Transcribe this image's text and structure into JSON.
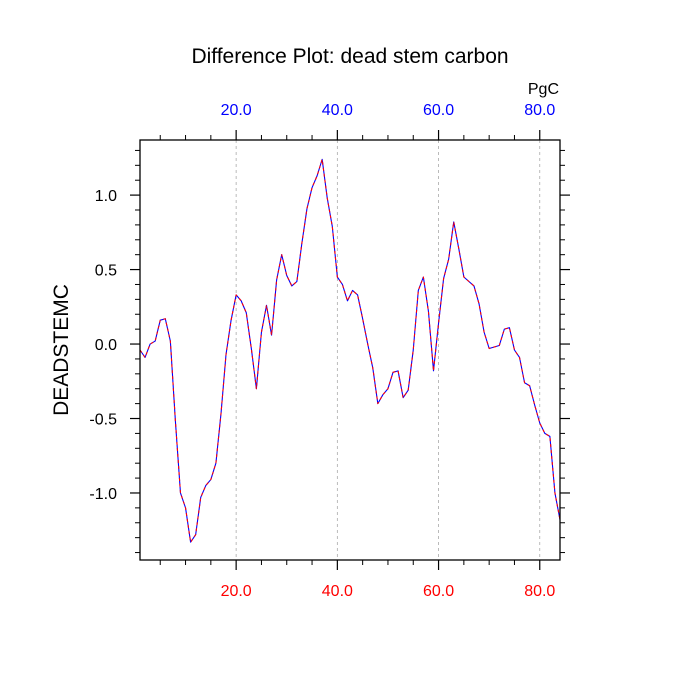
{
  "chart_data": {
    "type": "line",
    "title": "Difference Plot: dead stem carbon",
    "ylabel": "DEADSTEMC",
    "top_axis_unit": "PgC",
    "xlim": [
      1,
      84
    ],
    "ylim": [
      -1.45,
      1.37
    ],
    "grid": "dashed vertical lines at major x ticks",
    "x_ticks": [
      20,
      40,
      60,
      80
    ],
    "x_tick_labels": [
      "20.0",
      "40.0",
      "60.0",
      "80.0"
    ],
    "y_ticks": [
      -1.0,
      -0.5,
      0.0,
      0.5,
      1.0
    ],
    "y_tick_labels": [
      "-1.0",
      "-0.5",
      "0.0",
      "0.5",
      "1.0"
    ],
    "x_minor_step": 5,
    "y_minor_step": 0.1,
    "colors": {
      "bottom_axis_labels": "#ff0000",
      "top_axis_labels": "#0000ff",
      "line_primary": "#0000ff",
      "line_overlay": "#ff0000",
      "grid": "#aaaaaa",
      "axes": "#000000"
    },
    "series": [
      {
        "x": [
          1,
          2,
          3,
          4,
          5,
          6,
          7,
          8,
          9,
          10,
          11,
          12,
          13,
          14,
          15,
          16,
          17,
          18,
          19,
          20,
          21,
          22,
          23,
          24,
          25,
          26,
          27,
          28,
          29,
          30,
          31,
          32,
          33,
          34,
          35,
          36,
          37,
          38,
          39,
          40,
          41,
          42,
          43,
          44,
          45,
          46,
          47,
          48,
          49,
          50,
          51,
          52,
          53,
          54,
          55,
          56,
          57,
          58,
          59,
          60,
          61,
          62,
          63,
          64,
          65,
          66,
          67,
          68,
          69,
          70,
          71,
          72,
          73,
          74,
          75,
          76,
          77,
          78,
          79,
          80,
          81,
          82,
          83,
          84
        ],
        "values": [
          -0.04,
          -0.09,
          0.0,
          0.02,
          0.16,
          0.17,
          0.02,
          -0.52,
          -1.0,
          -1.1,
          -1.33,
          -1.28,
          -1.03,
          -0.95,
          -0.91,
          -0.8,
          -0.47,
          -0.07,
          0.16,
          0.33,
          0.29,
          0.21,
          -0.03,
          -0.3,
          0.08,
          0.26,
          0.06,
          0.43,
          0.6,
          0.46,
          0.39,
          0.42,
          0.68,
          0.91,
          1.05,
          1.13,
          1.24,
          0.98,
          0.79,
          0.45,
          0.4,
          0.29,
          0.36,
          0.33,
          0.17,
          0.0,
          -0.16,
          -0.4,
          -0.34,
          -0.3,
          -0.19,
          -0.18,
          -0.36,
          -0.31,
          -0.04,
          0.36,
          0.45,
          0.22,
          -0.18,
          0.14,
          0.44,
          0.57,
          0.82,
          0.64,
          0.45,
          0.42,
          0.39,
          0.27,
          0.08,
          -0.03,
          -0.02,
          -0.01,
          0.1,
          0.11,
          -0.04,
          -0.09,
          -0.26,
          -0.28,
          -0.41,
          -0.53,
          -0.6,
          -0.62,
          -1.0,
          -1.18
        ]
      }
    ]
  }
}
